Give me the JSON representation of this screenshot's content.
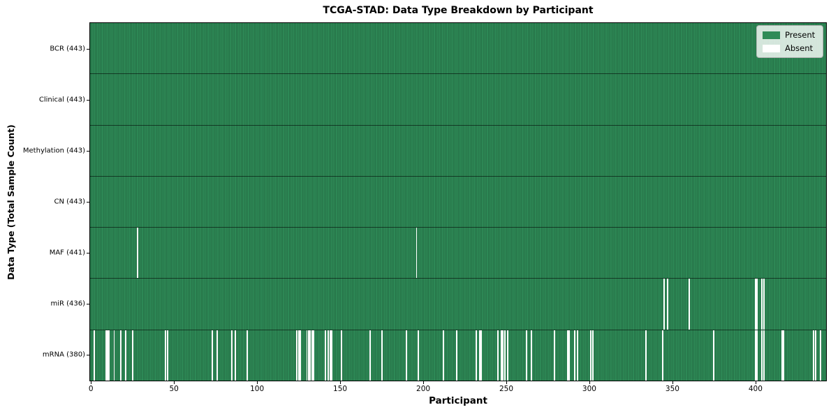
{
  "chart_data": {
    "type": "heatmap",
    "title": "TCGA-STAD: Data Type Breakdown by Participant",
    "xlabel": "Participant",
    "ylabel": "Data Type (Total Sample Count)",
    "n_participants": 443,
    "x_ticks": [
      0,
      50,
      100,
      150,
      200,
      250,
      300,
      350,
      400
    ],
    "grid": "cell-edges-only",
    "values_meaning": {
      "present": 1,
      "absent": 0
    },
    "colors": {
      "present": "#2e8b57",
      "absent": "#ffffff",
      "cell_edge": "rgba(0,0,0,0.40)",
      "row_edge": "rgba(0,0,0,0.55)"
    },
    "legend": {
      "position": "upper right",
      "entries": [
        {
          "label": "Present",
          "color": "#2e8b57"
        },
        {
          "label": "Absent",
          "color": "#ffffff"
        }
      ]
    },
    "rows": [
      {
        "name": "BCR",
        "label": "BCR (443)",
        "total_present": 443,
        "absent_participants": []
      },
      {
        "name": "Clinical",
        "label": "Clinical (443)",
        "total_present": 443,
        "absent_participants": []
      },
      {
        "name": "Methylation",
        "label": "Methylation (443)",
        "total_present": 443,
        "absent_participants": []
      },
      {
        "name": "CN",
        "label": "CN (443)",
        "total_present": 443,
        "absent_participants": []
      },
      {
        "name": "MAF",
        "label": "MAF (441)",
        "total_present": 441,
        "absent_participants": [
          28,
          196
        ]
      },
      {
        "name": "miR",
        "label": "miR (436)",
        "total_present": 436,
        "absent_participants": [
          345,
          347,
          360,
          400,
          401,
          404,
          405
        ]
      },
      {
        "name": "mRNA",
        "label": "mRNA (380)",
        "total_present": 380,
        "absent_participants": [
          2,
          9,
          10,
          11,
          14,
          18,
          21,
          25,
          45,
          46,
          73,
          76,
          85,
          87,
          94,
          124,
          125,
          126,
          130,
          131,
          132,
          133,
          134,
          141,
          143,
          144,
          145,
          151,
          168,
          175,
          190,
          197,
          212,
          220,
          232,
          234,
          235,
          245,
          247,
          248,
          249,
          251,
          262,
          265,
          279,
          287,
          288,
          291,
          293,
          301,
          302,
          334,
          344,
          375,
          400,
          401,
          404,
          405,
          416,
          417,
          435,
          436,
          439
        ]
      }
    ]
  }
}
